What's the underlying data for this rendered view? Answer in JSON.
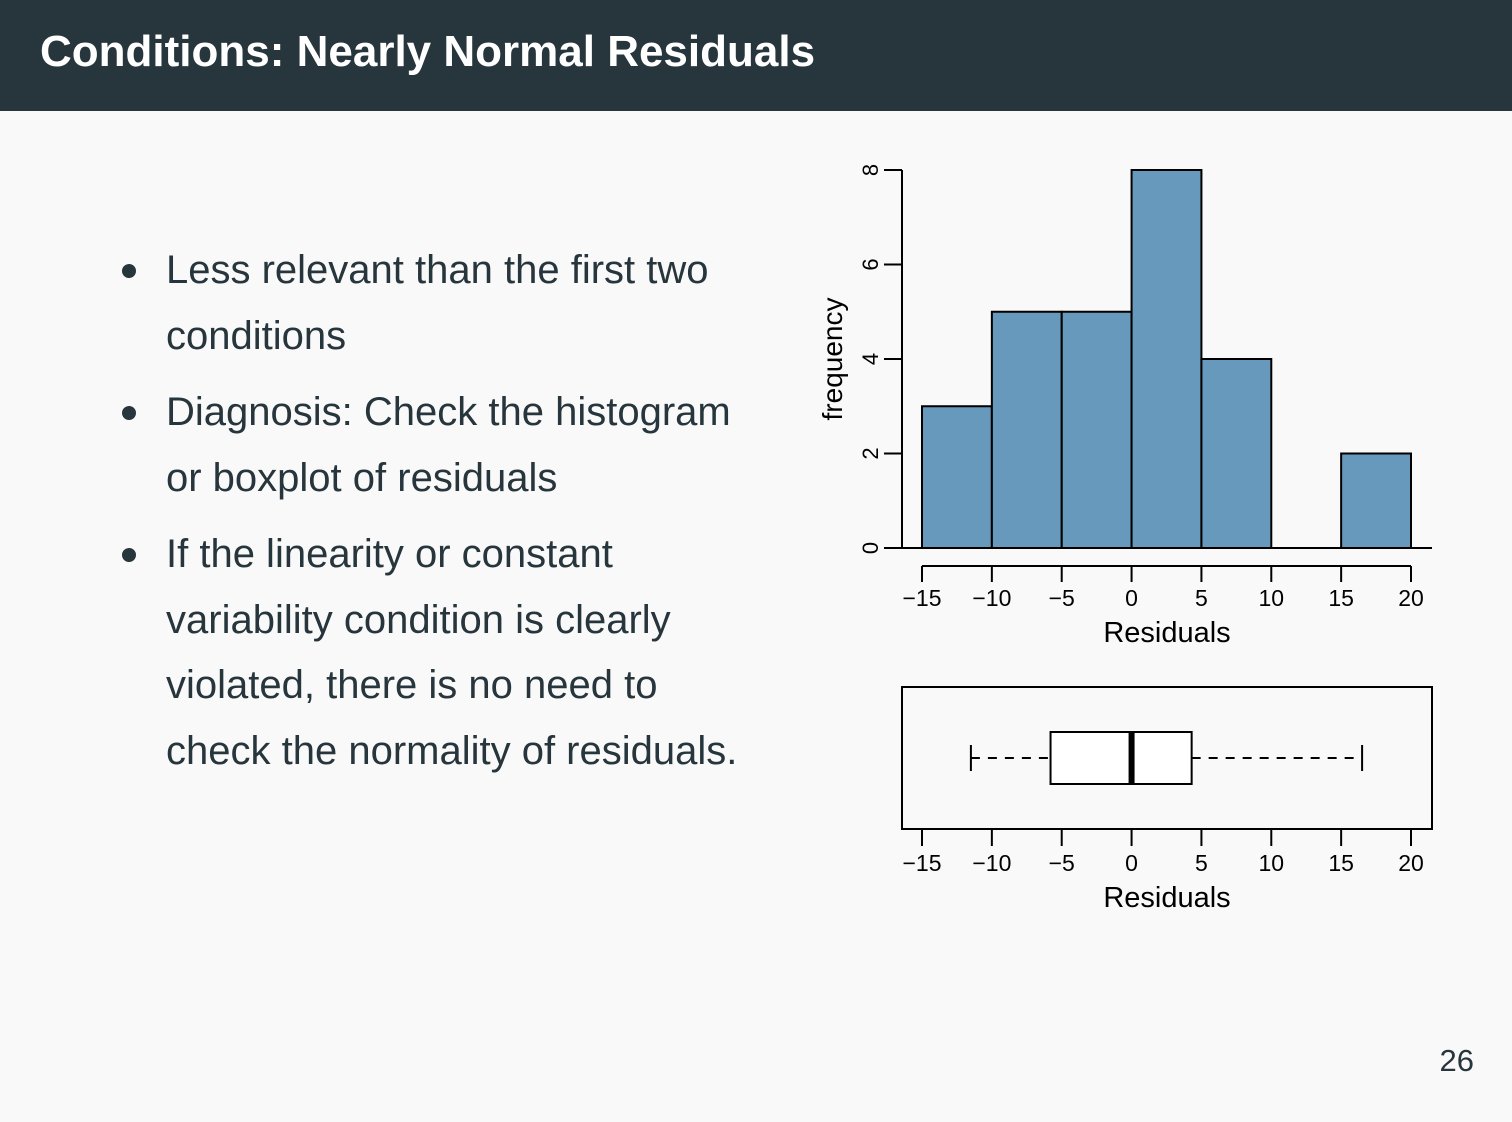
{
  "slide": {
    "title": "Conditions: Nearly Normal Residuals",
    "page_number": "26",
    "bullets": [
      "Less relevant than the first two conditions",
      "Diagnosis: Check the histogram or boxplot of residuals",
      "If the linearity or constant variability condition is clearly violated, there is no need to check the normality of residuals."
    ]
  },
  "colors": {
    "header_bg": "#27353c",
    "bar_fill": "#6699bb",
    "text": "#27353c"
  },
  "chart_data": [
    {
      "type": "bar",
      "title": "",
      "xlabel": "Residuals",
      "ylabel": "frequency",
      "bin_edges": [
        -15,
        -10,
        -5,
        0,
        5,
        10,
        15,
        20
      ],
      "values": [
        3,
        5,
        5,
        8,
        4,
        0,
        2
      ],
      "xlim": [
        -15,
        20
      ],
      "ylim": [
        0,
        8
      ],
      "x_ticks": [
        -15,
        -10,
        -5,
        0,
        5,
        10,
        15,
        20
      ],
      "x_tick_labels": [
        "−15",
        "−10",
        "−5",
        "0",
        "5",
        "10",
        "15",
        "20"
      ],
      "y_ticks": [
        0,
        2,
        4,
        6,
        8
      ],
      "y_tick_labels": [
        "0",
        "2",
        "4",
        "6",
        "8"
      ],
      "grid": false
    },
    {
      "type": "boxplot",
      "xlabel": "Residuals",
      "xlim": [
        -15,
        20
      ],
      "whisker_low": -11.5,
      "q1": -5.8,
      "median": 0,
      "q3": 4.3,
      "whisker_high": 16.5,
      "x_ticks": [
        -15,
        -10,
        -5,
        0,
        5,
        10,
        15,
        20
      ],
      "x_tick_labels": [
        "−15",
        "−10",
        "−5",
        "0",
        "5",
        "10",
        "15",
        "20"
      ],
      "grid": false
    }
  ]
}
